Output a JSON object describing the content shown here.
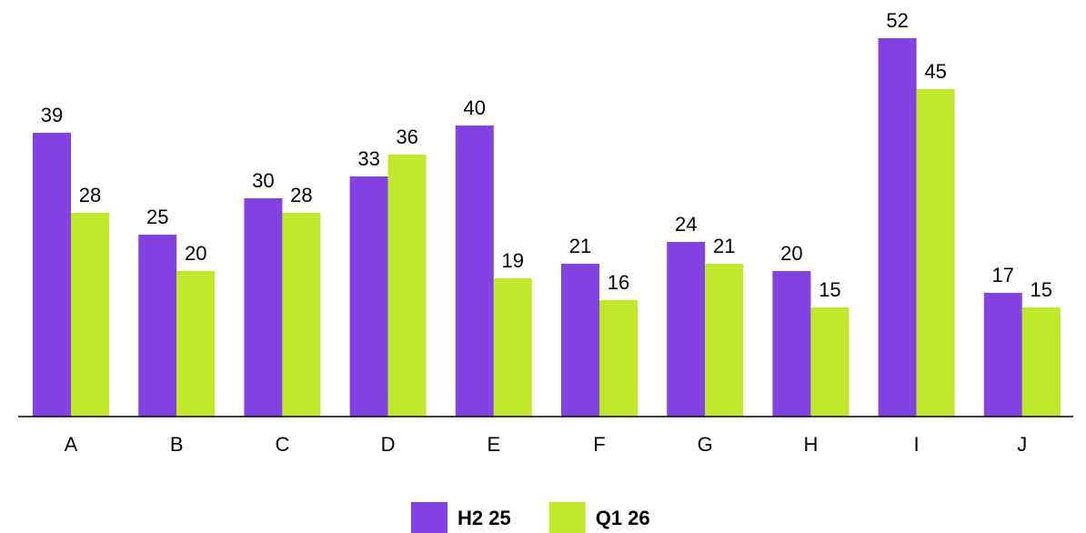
{
  "chart_data": {
    "type": "bar",
    "categories": [
      "A",
      "B",
      "C",
      "D",
      "E",
      "F",
      "G",
      "H",
      "I",
      "J"
    ],
    "series": [
      {
        "name": "H2 25",
        "color": "#8542e2",
        "values": [
          39,
          25,
          30,
          33,
          40,
          21,
          24,
          20,
          52,
          17
        ]
      },
      {
        "name": "Q1 26",
        "color": "#bfe82c",
        "values": [
          28,
          20,
          28,
          36,
          19,
          16,
          21,
          15,
          45,
          15
        ]
      }
    ],
    "ylim": [
      0,
      57
    ],
    "legend": "bottom"
  }
}
